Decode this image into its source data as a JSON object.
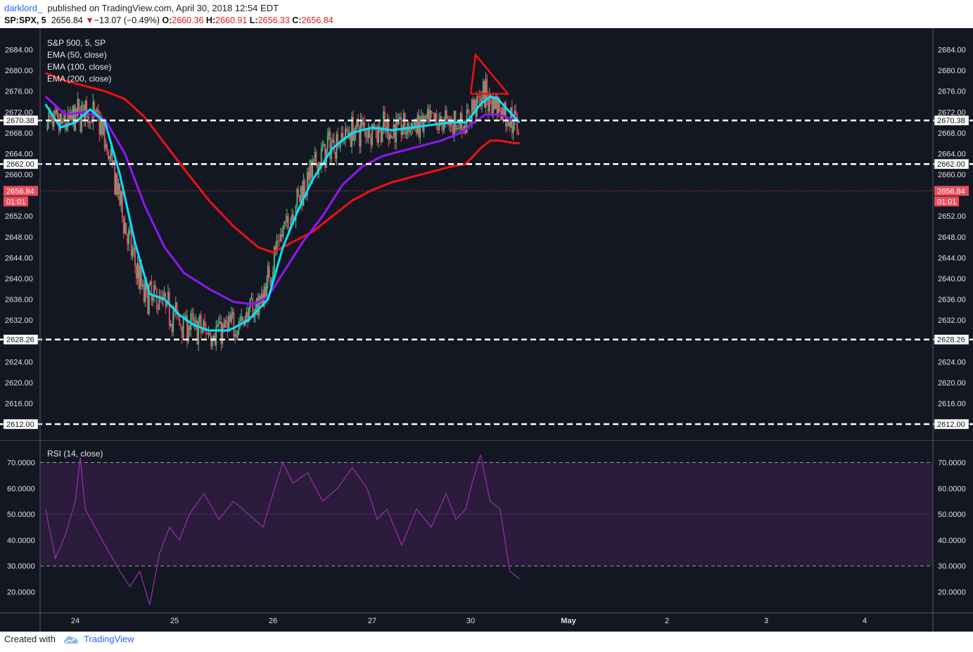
{
  "header": {
    "user": "darklord_",
    "published": "published on TradingView.com, April 30, 2018 12:54 EDT",
    "symbol": "SP:SPX, 5",
    "last": "2656.84",
    "change": "−13.07 (−0.49%)",
    "o_label": "O:",
    "o": "2660.36",
    "h_label": "H:",
    "h": "2660.91",
    "l_label": "L:",
    "l": "2656.33",
    "c_label": "C:",
    "c": "2656.84"
  },
  "footer": {
    "created_with": "Created with",
    "brand": "TradingView"
  },
  "colors": {
    "background": "#131722",
    "candle_up": "#53b987",
    "candle_down": "#eb4d5c",
    "ema50": "#00e5ff",
    "ema100": "#8e17f2",
    "ema200": "#f01010",
    "rsi": "#9b2fb0",
    "level": "#ffffff"
  },
  "chart_data": [
    {
      "type": "candlestick",
      "title": "S&P 500, 5, SP",
      "series": [
        {
          "name": "EMA (50, close)",
          "color": "#00e5ff",
          "x": [
            23.7,
            23.85,
            24.0,
            24.15,
            24.3,
            24.45,
            24.6,
            24.75,
            24.9,
            25.05,
            25.2,
            25.35,
            25.55,
            25.75,
            25.95,
            26.1,
            26.25,
            26.4,
            26.6,
            26.8,
            27.0,
            27.2,
            27.4,
            27.6,
            27.8,
            27.95,
            30.0,
            30.1,
            30.2,
            30.28,
            30.35,
            30.5
          ],
          "values": [
            2673.5,
            2669,
            2670,
            2672.5,
            2670,
            2660,
            2647,
            2637,
            2636,
            2633,
            2631,
            2630,
            2630,
            2632,
            2636,
            2646,
            2653,
            2659,
            2665,
            2668,
            2669,
            2668.5,
            2669,
            2669.5,
            2670,
            2670,
            2671,
            2673.5,
            2675,
            2674.5,
            2673,
            2670
          ]
        },
        {
          "name": "EMA (100, close)",
          "color": "#8e17f2",
          "x": [
            23.7,
            23.9,
            24.1,
            24.3,
            24.5,
            24.7,
            24.9,
            25.1,
            25.35,
            25.6,
            25.8,
            25.95,
            26.1,
            26.3,
            26.5,
            26.7,
            26.9,
            27.1,
            27.3,
            27.5,
            27.7,
            27.9,
            30.0,
            30.15,
            30.3,
            30.5
          ],
          "values": [
            2675,
            2671.5,
            2672,
            2670.5,
            2664,
            2654,
            2646,
            2641,
            2638,
            2635.5,
            2635,
            2636.5,
            2641,
            2647,
            2652,
            2658,
            2661.5,
            2663.5,
            2664.5,
            2665.5,
            2666.5,
            2668,
            2669.5,
            2671.5,
            2671.5,
            2670
          ]
        },
        {
          "name": "EMA (200, close)",
          "color": "#f01010",
          "x": [
            23.7,
            23.9,
            24.1,
            24.3,
            24.5,
            24.7,
            24.9,
            25.1,
            25.35,
            25.6,
            25.85,
            26.0,
            26.2,
            26.4,
            26.6,
            26.8,
            27.0,
            27.2,
            27.4,
            27.6,
            27.8,
            27.95,
            30.1,
            30.2,
            30.3,
            30.45,
            30.5
          ],
          "values": [
            2679.5,
            2678,
            2677,
            2676,
            2674.5,
            2671,
            2666,
            2661,
            2655,
            2650,
            2646,
            2645,
            2647,
            2649,
            2652,
            2655,
            2657,
            2658.5,
            2659.5,
            2660.5,
            2661.5,
            2662,
            2665,
            2666.5,
            2666.5,
            2666,
            2666
          ]
        }
      ],
      "y_axis_labels": [
        "2684.00",
        "2680.00",
        "2676.00",
        "2672.00",
        "2668.00",
        "2664.00",
        "2660.00",
        "2652.00",
        "2648.00",
        "2644.00",
        "2640.00",
        "2636.00",
        "2632.00",
        "2624.00",
        "2620.00",
        "2616.00"
      ],
      "price_lines": [
        "2670.38",
        "2662.00",
        "2628.26",
        "2612.00"
      ],
      "last_price": "2656.84",
      "countdown": "01:01",
      "x_ticks": [
        "24",
        "25",
        "26",
        "27",
        "30",
        "May",
        "2",
        "3",
        "4"
      ],
      "ylim": [
        2611,
        2685
      ],
      "grid": false,
      "legend_position": "top-left"
    },
    {
      "type": "line",
      "title": "RSI (14, close)",
      "y_axis_labels": [
        "70.0000",
        "60.0000",
        "50.0000",
        "40.0000",
        "30.0000",
        "20.0000"
      ],
      "ylim": [
        16,
        74
      ],
      "band": [
        30,
        70
      ],
      "x": [
        23.7,
        23.8,
        23.9,
        24.0,
        24.05,
        24.1,
        24.2,
        24.3,
        24.45,
        24.55,
        24.65,
        24.75,
        24.85,
        24.95,
        25.05,
        25.15,
        25.3,
        25.45,
        25.6,
        25.75,
        25.9,
        26.0,
        26.1,
        26.2,
        26.35,
        26.5,
        26.65,
        26.8,
        26.95,
        27.05,
        27.15,
        27.3,
        27.45,
        27.6,
        27.75,
        27.85,
        27.95,
        30.0,
        30.1,
        30.2,
        30.3,
        30.4,
        30.5
      ],
      "values": [
        52,
        33,
        42,
        55,
        72,
        52,
        45,
        38,
        28,
        22,
        28,
        15,
        35,
        45,
        40,
        50,
        58,
        48,
        55,
        50,
        45,
        58,
        70,
        62,
        66,
        55,
        60,
        68,
        60,
        48,
        52,
        38,
        52,
        45,
        58,
        48,
        52,
        60,
        73,
        55,
        52,
        28,
        25
      ]
    }
  ]
}
